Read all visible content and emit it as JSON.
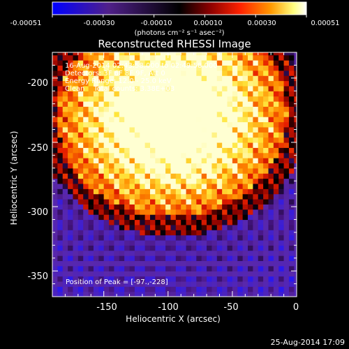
{
  "colorbar": {
    "ticks": [
      "-0.00051",
      "-0.00030",
      "-0.00010",
      "0.00010",
      "0.00030",
      "0.00051"
    ],
    "unit_label": "(photons cm⁻² s⁻¹ asec⁻²)",
    "colors": [
      "#0000ff",
      "#4b0082",
      "#800080",
      "#000000",
      "#8b0000",
      "#ff2200",
      "#ff8800",
      "#ffff66",
      "#ffffff"
    ]
  },
  "chart_data": {
    "type": "heatmap",
    "title": "Reconstructed RHESSI Image",
    "xlabel": "Heliocentric X (arcsec)",
    "ylabel": "Heliocentric Y (arcsec)",
    "xlim": [
      -190,
      0
    ],
    "ylim": [
      -370,
      -180
    ],
    "xticks": [
      "-150",
      "-100",
      "-50",
      "0"
    ],
    "yticks": [
      "-200",
      "-250",
      "-300",
      "-350"
    ],
    "source": {
      "x": -97,
      "y": -228
    },
    "annotations": {
      "time": "16-Aug-2014 02:43:58.000 to 02:49:58.000",
      "detectors": "Detectors: 3F 6F 8F 9F, Att 0",
      "energy": "Energy Range: 12.0 - 25.0 keV",
      "clean": "Clean    Total counts: 3.38E+03",
      "peak": "Position of Peak = [-97.,-228]"
    }
  },
  "footer": {
    "date": "25-Aug-2014 17:09"
  }
}
